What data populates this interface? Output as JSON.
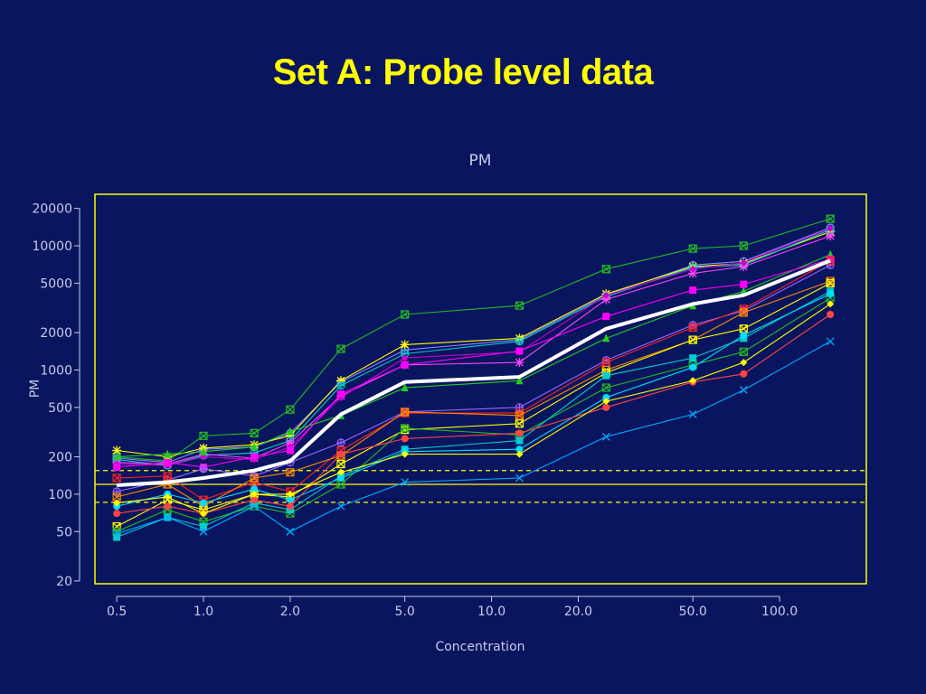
{
  "slide": {
    "title": "Set A: Probe level data"
  },
  "chart_data": {
    "type": "line",
    "title": "PM",
    "xlabel": "Concentration",
    "ylabel": "PM",
    "x_scale": "log",
    "y_scale": "log",
    "xlim": [
      0.42,
      200
    ],
    "ylim": [
      19,
      26000
    ],
    "x_ticks": [
      0.5,
      1.0,
      2.0,
      5.0,
      10.0,
      20.0,
      50.0,
      100.0
    ],
    "x_tick_labels": [
      "0.5",
      "1.0",
      "2.0",
      "5.0",
      "10.0",
      "20.0",
      "50.0",
      "100.0"
    ],
    "y_ticks": [
      20,
      50,
      100,
      200,
      500,
      1000,
      2000,
      5000,
      10000,
      20000
    ],
    "y_tick_labels": [
      "20",
      "50",
      "100",
      "200",
      "500",
      "1000",
      "2000",
      "5000",
      "10000",
      "20000"
    ],
    "x": [
      0.5,
      0.75,
      1.0,
      1.5,
      2.0,
      3.0,
      5.0,
      12.5,
      25.0,
      50.0,
      75.0,
      150.0
    ],
    "colors": {
      "background": "#0a1560",
      "frame": "#ffff00",
      "text": "#c8cbe6",
      "title": "#ffff00",
      "median": "#ffffff"
    },
    "reference_lines": [
      {
        "y": 120,
        "style": "solid",
        "color": "#ffff00"
      },
      {
        "y": 155,
        "style": "dashed",
        "color": "#ffff00"
      },
      {
        "y": 86,
        "style": "dashed",
        "color": "#ffff00"
      }
    ],
    "median": {
      "color": "#ffffff",
      "values": [
        118,
        125,
        135,
        155,
        185,
        440,
        800,
        880,
        2150,
        3400,
        4000,
        7600
      ]
    },
    "series": [
      {
        "color": "#22bb22",
        "marker": "boxed-x",
        "values": [
          200,
          185,
          295,
          310,
          480,
          1480,
          2800,
          3300,
          6500,
          9500,
          10000,
          16500
        ]
      },
      {
        "color": "#8888ff",
        "marker": "circle-plus",
        "values": [
          195,
          180,
          230,
          240,
          310,
          800,
          1450,
          1750,
          4000,
          7000,
          7500,
          14000
        ]
      },
      {
        "color": "#ffff00",
        "marker": "star",
        "values": [
          225,
          200,
          235,
          250,
          295,
          820,
          1600,
          1800,
          4100,
          6800,
          7200,
          13000
        ]
      },
      {
        "color": "#00cccc",
        "marker": "circle-plus",
        "values": [
          190,
          170,
          205,
          215,
          270,
          750,
          1350,
          1700,
          3900,
          6700,
          7000,
          13500
        ]
      },
      {
        "color": "#ff44ff",
        "marker": "star",
        "values": [
          180,
          175,
          210,
          195,
          260,
          620,
          1100,
          1150,
          3700,
          6000,
          6800,
          12000
        ]
      },
      {
        "color": "#cc00cc",
        "marker": "diamond",
        "values": [
          175,
          170,
          200,
          190,
          240,
          600,
          1250,
          1400,
          4000,
          6500,
          7300,
          13800
        ]
      },
      {
        "color": "#22cc22",
        "marker": "triangle",
        "values": [
          200,
          210,
          220,
          240,
          320,
          430,
          720,
          820,
          1800,
          3300,
          4300,
          8500
        ]
      },
      {
        "color": "#ff00ff",
        "marker": "square",
        "values": [
          165,
          180,
          165,
          200,
          225,
          640,
          1100,
          1420,
          2700,
          4400,
          4900,
          7800
        ]
      },
      {
        "color": "#9966ff",
        "marker": "circle-plus",
        "values": [
          105,
          130,
          160,
          140,
          180,
          260,
          460,
          500,
          1200,
          2300,
          3000,
          7000
        ]
      },
      {
        "color": "#ff2222",
        "marker": "boxed-x",
        "values": [
          135,
          140,
          90,
          125,
          105,
          225,
          450,
          450,
          1150,
          2200,
          3100,
          7600
        ]
      },
      {
        "color": "#ff8800",
        "marker": "boxed-x",
        "values": [
          95,
          120,
          80,
          135,
          150,
          205,
          460,
          430,
          1000,
          1750,
          2900,
          5200
        ]
      },
      {
        "color": "#ffff00",
        "marker": "boxed-x",
        "values": [
          55,
          90,
          75,
          100,
          95,
          175,
          330,
          370,
          950,
          1750,
          2150,
          5000
        ]
      },
      {
        "color": "#22bb22",
        "marker": "boxed-x",
        "values": [
          50,
          75,
          60,
          80,
          70,
          120,
          340,
          300,
          720,
          1100,
          1400,
          3800
        ]
      },
      {
        "color": "#00cccc",
        "marker": "square",
        "values": [
          45,
          65,
          55,
          85,
          75,
          140,
          230,
          270,
          900,
          1250,
          1800,
          4300
        ]
      },
      {
        "color": "#00ddff",
        "marker": "circle",
        "values": [
          80,
          100,
          85,
          110,
          90,
          135,
          220,
          230,
          600,
          1050,
          1900,
          4100
        ]
      },
      {
        "color": "#ff4444",
        "marker": "circle",
        "values": [
          70,
          80,
          70,
          90,
          80,
          210,
          280,
          310,
          500,
          800,
          930,
          2800
        ]
      },
      {
        "color": "#ffff00",
        "marker": "diamond",
        "values": [
          85,
          95,
          70,
          100,
          100,
          150,
          210,
          210,
          560,
          820,
          1150,
          3400
        ]
      },
      {
        "color": "#00aaff",
        "marker": "x",
        "values": [
          48,
          65,
          50,
          80,
          50,
          80,
          125,
          135,
          290,
          440,
          690,
          1700
        ]
      }
    ]
  }
}
